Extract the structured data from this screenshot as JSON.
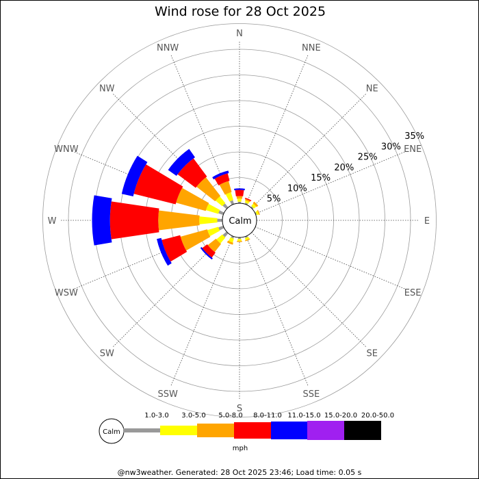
{
  "chart_data": {
    "type": "windrose",
    "title": "Wind rose for 28 Oct 2025",
    "directions": [
      "N",
      "NNE",
      "NE",
      "ENE",
      "E",
      "ESE",
      "SE",
      "SSE",
      "S",
      "SSW",
      "SW",
      "WSW",
      "W",
      "WNW",
      "NW",
      "NNW"
    ],
    "radial_ticks": [
      "5%",
      "10%",
      "15%",
      "20%",
      "25%",
      "30%",
      "35%"
    ],
    "radial_values": [
      5,
      10,
      15,
      20,
      25,
      30,
      35
    ],
    "center_label": "Calm",
    "legend_calm": "Calm",
    "unit": "mph",
    "speed_bins": [
      {
        "name": "1.0-3.0",
        "color": "#999999"
      },
      {
        "name": "3.0-5.0",
        "color": "#ffff00"
      },
      {
        "name": "5.0-8.0",
        "color": "#ffa500"
      },
      {
        "name": "8.0-11.0",
        "color": "#ff0000"
      },
      {
        "name": "11.0-15.0",
        "color": "#0000ff"
      },
      {
        "name": "15.0-20.0",
        "color": "#a020f0"
      },
      {
        "name": "20.0-50.0",
        "color": "#000000"
      }
    ],
    "frequencies_percent": {
      "N": [
        0.3,
        0.6,
        0.5,
        1.2,
        0.3,
        0,
        0
      ],
      "NNE": [
        0.3,
        0.4,
        0.3,
        0.2,
        0,
        0,
        0
      ],
      "NE": [
        0.3,
        0.6,
        0.4,
        0,
        0,
        0,
        0
      ],
      "ENE": [
        0.2,
        0.4,
        0.2,
        0,
        0,
        0,
        0
      ],
      "E": [
        0,
        0,
        0,
        0,
        0,
        0,
        0
      ],
      "ESE": [
        0,
        0,
        0,
        0,
        0,
        0,
        0
      ],
      "SE": [
        0,
        0,
        0,
        0,
        0,
        0,
        0
      ],
      "SSE": [
        0.3,
        0.4,
        0.2,
        0,
        0,
        0,
        0
      ],
      "S": [
        0.3,
        0.4,
        0.2,
        0,
        0,
        0,
        0
      ],
      "SSW": [
        0.4,
        0.8,
        0.4,
        0,
        0,
        0,
        0
      ],
      "SW": [
        1.0,
        1.5,
        2.0,
        1.2,
        0.3,
        0,
        0
      ],
      "WSW": [
        1.0,
        2.2,
        5.4,
        3.7,
        0.9,
        0,
        0
      ],
      "W": [
        1.0,
        3.5,
        8.0,
        9.4,
        3.5,
        0,
        0
      ],
      "WNW": [
        1.0,
        2.5,
        6.0,
        8.4,
        2.3,
        0,
        0
      ],
      "NW": [
        1.0,
        1.7,
        4.6,
        4.4,
        2.0,
        0,
        0
      ],
      "NNW": [
        0.8,
        1.6,
        2.2,
        1.5,
        0.5,
        0,
        0
      ]
    }
  },
  "footer": "@nw3weather. Generated: 28 Oct 2025 23:46; Load time: 0.05 s"
}
